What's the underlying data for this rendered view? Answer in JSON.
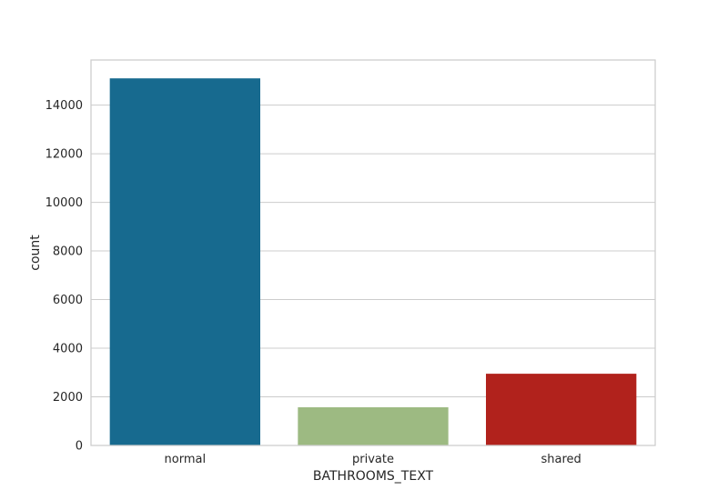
{
  "chart_data": {
    "type": "bar",
    "categories": [
      "normal",
      "private",
      "shared"
    ],
    "values": [
      15100,
      1570,
      2950
    ],
    "colors": [
      "#176a8f",
      "#9dba82",
      "#b1221c"
    ],
    "title": "",
    "xlabel": "BATHROOMS_TEXT",
    "ylabel": "count",
    "ylim": [
      0,
      15855
    ],
    "yticks": [
      0,
      2000,
      4000,
      6000,
      8000,
      10000,
      12000,
      14000
    ],
    "grid": "y-axis on"
  }
}
